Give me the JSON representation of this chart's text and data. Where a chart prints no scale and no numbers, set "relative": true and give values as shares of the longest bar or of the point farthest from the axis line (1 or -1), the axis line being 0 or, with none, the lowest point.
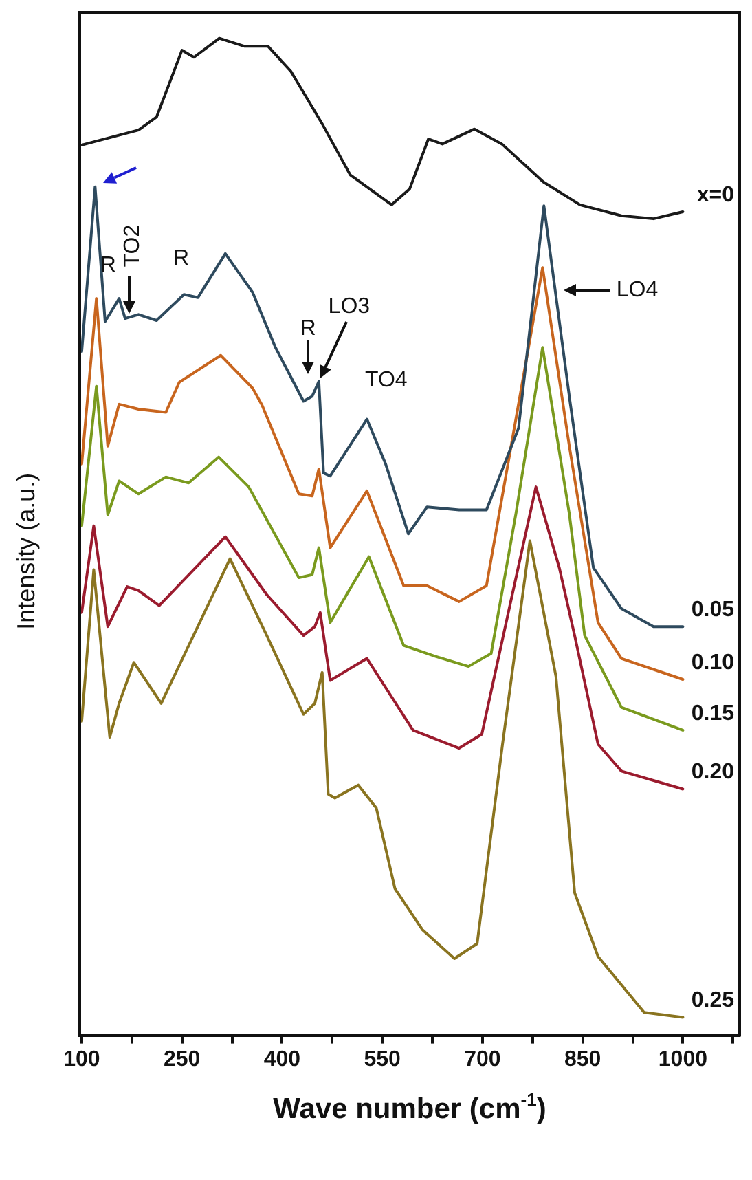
{
  "chart_data": {
    "type": "line",
    "relative": true,
    "xlabel": "Wave number (cm$^{-1}$)",
    "ylabel": "Intensity (a.u.)",
    "xlim": [
      97,
      1085
    ],
    "xticks": [
      100,
      {
        "value": 175,
        "label": null
      },
      250,
      {
        "value": 325,
        "label": null
      },
      400,
      {
        "value": 475,
        "label": null
      },
      550,
      {
        "value": 625,
        "label": null
      },
      700,
      {
        "value": 775,
        "label": null
      },
      850,
      {
        "value": 925,
        "label": null
      },
      1000,
      {
        "value": 1075,
        "label": null
      }
    ],
    "grid": false,
    "legend": false,
    "marker": "none",
    "line_style": "solid",
    "series": [
      {
        "name": "x=0",
        "color": "#1a1a1a",
        "x": [
          100,
          185,
          212,
          233,
          250,
          268,
          306,
          344,
          379,
          413,
          461,
          502,
          564,
          591,
          619,
          640,
          688,
          729,
          791,
          846,
          908,
          956,
          1000
        ],
        "values": [
          0.893,
          0.908,
          0.921,
          0.958,
          0.988,
          0.981,
          1.0,
          0.992,
          0.992,
          0.967,
          0.913,
          0.863,
          0.833,
          0.849,
          0.899,
          0.894,
          0.909,
          0.894,
          0.856,
          0.833,
          0.822,
          0.819,
          0.826
        ]
      },
      {
        "name": "0.05",
        "color": "#2e4a5e",
        "x": [
          100,
          120,
          135,
          156,
          165,
          185,
          212,
          253,
          274,
          315,
          356,
          390,
          432,
          445,
          455,
          462,
          472,
          527,
          555,
          589,
          617,
          665,
          706,
          754,
          792,
          831,
          866,
          908,
          956,
          1000
        ],
        "values": [
          0.686,
          0.851,
          0.716,
          0.739,
          0.719,
          0.723,
          0.717,
          0.743,
          0.74,
          0.784,
          0.745,
          0.69,
          0.636,
          0.641,
          0.656,
          0.564,
          0.561,
          0.618,
          0.573,
          0.503,
          0.53,
          0.527,
          0.527,
          0.609,
          0.832,
          0.636,
          0.469,
          0.428,
          0.41,
          0.41
        ]
      },
      {
        "name": "0.10",
        "color": "#c8651e",
        "x": [
          100,
          122,
          139,
          156,
          185,
          226,
          246,
          308,
          356,
          370,
          425,
          445,
          455,
          472,
          527,
          582,
          617,
          665,
          706,
          790,
          830,
          873,
          908,
          1000
        ],
        "values": [
          0.573,
          0.739,
          0.591,
          0.633,
          0.628,
          0.625,
          0.655,
          0.682,
          0.649,
          0.632,
          0.543,
          0.541,
          0.568,
          0.489,
          0.546,
          0.451,
          0.451,
          0.435,
          0.451,
          0.77,
          0.591,
          0.414,
          0.378,
          0.357
        ]
      },
      {
        "name": "0.15",
        "color": "#7a9a1e",
        "x": [
          100,
          122,
          139,
          156,
          185,
          226,
          260,
          305,
          350,
          425,
          445,
          455,
          472,
          530,
          582,
          630,
          679,
          713,
          750,
          790,
          830,
          853,
          908,
          1000
        ],
        "values": [
          0.511,
          0.651,
          0.522,
          0.556,
          0.543,
          0.56,
          0.554,
          0.58,
          0.55,
          0.459,
          0.462,
          0.489,
          0.414,
          0.48,
          0.391,
          0.38,
          0.37,
          0.383,
          0.523,
          0.69,
          0.523,
          0.401,
          0.329,
          0.306
        ]
      },
      {
        "name": "0.20",
        "color": "#9b1b2e",
        "x": [
          100,
          118,
          139,
          168,
          185,
          216,
          315,
          377,
          432,
          449,
          457,
          472,
          527,
          596,
          665,
          699,
          740,
          780,
          815,
          838,
          873,
          908,
          1000
        ],
        "values": [
          0.424,
          0.511,
          0.41,
          0.45,
          0.446,
          0.431,
          0.5,
          0.442,
          0.401,
          0.41,
          0.424,
          0.356,
          0.378,
          0.306,
          0.288,
          0.302,
          0.428,
          0.55,
          0.469,
          0.401,
          0.292,
          0.265,
          0.247
        ]
      },
      {
        "name": "0.25",
        "color": "#8a7420",
        "x": [
          100,
          118,
          142,
          156,
          178,
          219,
          322,
          377,
          432,
          449,
          460,
          469,
          479,
          514,
          541,
          569,
          610,
          658,
          692,
          730,
          771,
          810,
          838,
          873,
          942,
          1000
        ],
        "values": [
          0.315,
          0.467,
          0.299,
          0.333,
          0.374,
          0.333,
          0.478,
          0.401,
          0.322,
          0.333,
          0.364,
          0.242,
          0.238,
          0.251,
          0.228,
          0.147,
          0.106,
          0.077,
          0.092,
          0.292,
          0.496,
          0.36,
          0.143,
          0.079,
          0.023,
          0.018
        ]
      }
    ],
    "annotations": [
      {
        "text": "R",
        "x": 156,
        "y": 0.739
      },
      {
        "text": "TO2",
        "x": 170,
        "y": 0.72
      },
      {
        "text": "R",
        "x": 253,
        "y": 0.743
      },
      {
        "text": "R",
        "x": 445,
        "y": 0.659
      },
      {
        "text": "LO3",
        "x": 455,
        "y": 0.656
      },
      {
        "text": "TO4",
        "x": 527,
        "y": 0.618
      },
      {
        "text": "LO4",
        "x": 810,
        "y": 0.742
      }
    ]
  }
}
